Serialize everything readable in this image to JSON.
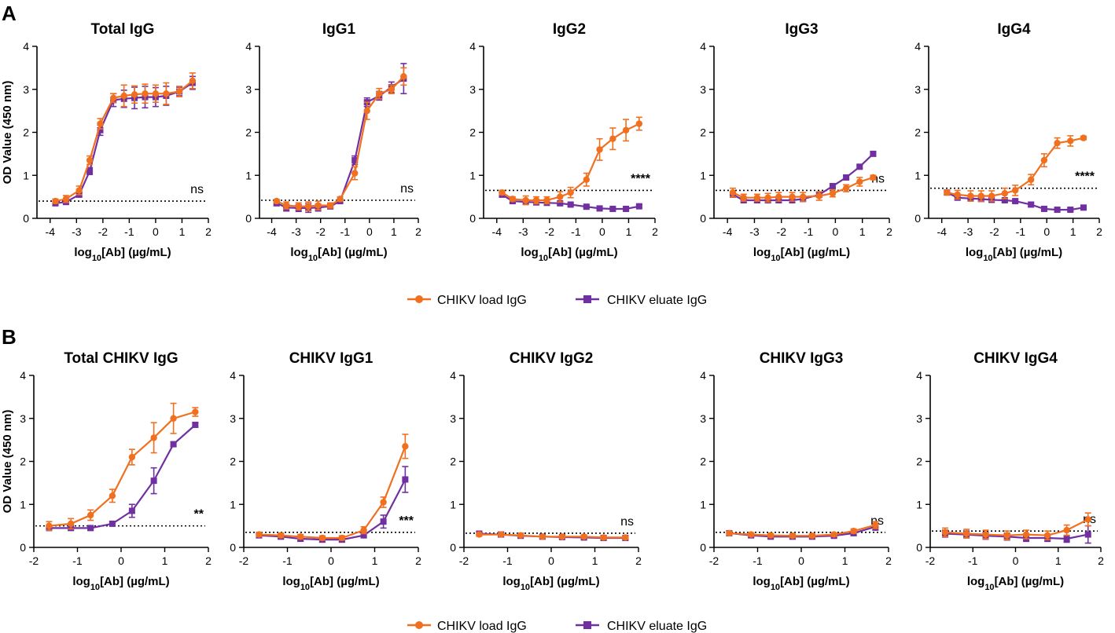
{
  "panels": [
    {
      "letter": "A",
      "legend": [
        "CHIKV load IgG",
        "CHIKV eluate IgG"
      ]
    },
    {
      "letter": "B",
      "legend": [
        "CHIKV load IgG",
        "CHIKV eluate IgG"
      ]
    }
  ],
  "colors": {
    "load": "#f07020",
    "eluate": "#7030a0",
    "axis": "#000000"
  },
  "chart_data": [
    {
      "type": "line",
      "title": "Total IgG",
      "xlabel": "log10[Ab] (µg/mL)",
      "ylabel": "OD Value (450 nm)",
      "xlim": [
        -4.5,
        2
      ],
      "ylim": [
        0,
        4
      ],
      "xticks": [
        "-4",
        "-3",
        "-2",
        "-1",
        "0",
        "1",
        "2"
      ],
      "yticks": [
        "0",
        "1",
        "2",
        "3",
        "4"
      ],
      "threshold": 0.4,
      "significance": "ns",
      "series": [
        {
          "name": "CHIKV load IgG",
          "x": [
            -3.8,
            -3.4,
            -2.9,
            -2.5,
            -2.1,
            -1.6,
            -1.2,
            -0.8,
            -0.4,
            0,
            0.4,
            0.9,
            1.4
          ],
          "y": [
            0.4,
            0.45,
            0.65,
            1.35,
            2.2,
            2.8,
            2.85,
            2.88,
            2.9,
            2.9,
            2.9,
            2.95,
            3.2
          ],
          "err": [
            0.05,
            0.08,
            0.1,
            0.1,
            0.12,
            0.1,
            0.25,
            0.2,
            0.22,
            0.2,
            0.25,
            0.12,
            0.18
          ]
        },
        {
          "name": "CHIKV eluate IgG",
          "x": [
            -3.8,
            -3.4,
            -2.9,
            -2.5,
            -2.1,
            -1.6,
            -1.2,
            -0.8,
            -0.4,
            0,
            0.4,
            0.9,
            1.4
          ],
          "y": [
            0.35,
            0.38,
            0.55,
            1.1,
            2.05,
            2.75,
            2.78,
            2.8,
            2.82,
            2.82,
            2.85,
            2.95,
            3.15
          ],
          "err": [
            0.05,
            0.05,
            0.05,
            0.08,
            0.12,
            0.15,
            0.2,
            0.25,
            0.25,
            0.22,
            0.22,
            0.1,
            0.15
          ]
        }
      ]
    },
    {
      "type": "line",
      "title": "IgG1",
      "xlabel": "log10[Ab] (µg/mL)",
      "ylabel": "OD Value (450 nm)",
      "xlim": [
        -4.5,
        2
      ],
      "ylim": [
        0,
        4
      ],
      "xticks": [
        "-4",
        "-3",
        "-2",
        "-1",
        "0",
        "1",
        "2"
      ],
      "yticks": [
        "0",
        "1",
        "2",
        "3",
        "4"
      ],
      "threshold": 0.42,
      "significance": "ns",
      "series": [
        {
          "name": "CHIKV load IgG",
          "x": [
            -3.8,
            -3.4,
            -2.9,
            -2.5,
            -2.1,
            -1.6,
            -1.2,
            -0.6,
            -0.1,
            0.4,
            0.9,
            1.4
          ],
          "y": [
            0.4,
            0.3,
            0.28,
            0.28,
            0.3,
            0.3,
            0.45,
            1.05,
            2.5,
            2.9,
            3.0,
            3.3
          ],
          "err": [
            0.04,
            0.08,
            0.08,
            0.1,
            0.1,
            0.06,
            0.05,
            0.15,
            0.2,
            0.12,
            0.1,
            0.2
          ]
        },
        {
          "name": "CHIKV eluate IgG",
          "x": [
            -3.8,
            -3.4,
            -2.9,
            -2.5,
            -2.1,
            -1.6,
            -1.2,
            -0.6,
            -0.1,
            0.4,
            0.9,
            1.4
          ],
          "y": [
            0.35,
            0.25,
            0.24,
            0.24,
            0.25,
            0.28,
            0.4,
            1.35,
            2.7,
            2.85,
            3.05,
            3.25
          ],
          "err": [
            0.05,
            0.08,
            0.08,
            0.1,
            0.08,
            0.06,
            0.05,
            0.1,
            0.1,
            0.1,
            0.12,
            0.35
          ]
        }
      ]
    },
    {
      "type": "line",
      "title": "IgG2",
      "xlabel": "log10[Ab] (µg/mL)",
      "ylabel": "OD Value (450 nm)",
      "xlim": [
        -4.5,
        2
      ],
      "ylim": [
        0,
        4
      ],
      "xticks": [
        "-4",
        "-3",
        "-2",
        "-1",
        "0",
        "1",
        "2"
      ],
      "yticks": [
        "0",
        "1",
        "2",
        "3",
        "4"
      ],
      "threshold": 0.65,
      "significance": "****",
      "series": [
        {
          "name": "CHIKV load IgG",
          "x": [
            -3.8,
            -3.4,
            -2.9,
            -2.5,
            -2.1,
            -1.6,
            -1.2,
            -0.6,
            -0.1,
            0.4,
            0.9,
            1.4
          ],
          "y": [
            0.6,
            0.45,
            0.42,
            0.42,
            0.42,
            0.5,
            0.6,
            0.9,
            1.6,
            1.85,
            2.05,
            2.2
          ],
          "err": [
            0.05,
            0.05,
            0.1,
            0.08,
            0.08,
            0.12,
            0.12,
            0.15,
            0.25,
            0.25,
            0.25,
            0.15
          ]
        },
        {
          "name": "CHIKV eluate IgG",
          "x": [
            -3.8,
            -3.4,
            -2.9,
            -2.5,
            -2.1,
            -1.6,
            -1.2,
            -0.6,
            -0.1,
            0.4,
            0.9,
            1.4
          ],
          "y": [
            0.55,
            0.4,
            0.38,
            0.37,
            0.36,
            0.35,
            0.32,
            0.27,
            0.23,
            0.22,
            0.22,
            0.28
          ],
          "err": [
            0.05,
            0.05,
            0.05,
            0.05,
            0.04,
            0.04,
            0.03,
            0.03,
            0.03,
            0.03,
            0.03,
            0.03
          ]
        }
      ]
    },
    {
      "type": "line",
      "title": "IgG3",
      "xlabel": "log10[Ab] (µg/mL)",
      "ylabel": "OD Value (450 nm)",
      "xlim": [
        -4.5,
        2
      ],
      "ylim": [
        0,
        4
      ],
      "xticks": [
        "-4",
        "-3",
        "-2",
        "-1",
        "0",
        "1",
        "2"
      ],
      "yticks": [
        "0",
        "1",
        "2",
        "3",
        "4"
      ],
      "threshold": 0.65,
      "significance": "ns",
      "series": [
        {
          "name": "CHIKV load IgG",
          "x": [
            -3.8,
            -3.4,
            -2.9,
            -2.5,
            -2.1,
            -1.6,
            -1.2,
            -0.6,
            -0.1,
            0.4,
            0.9,
            1.4
          ],
          "y": [
            0.6,
            0.48,
            0.48,
            0.48,
            0.5,
            0.5,
            0.5,
            0.52,
            0.58,
            0.7,
            0.85,
            0.95
          ],
          "err": [
            0.1,
            0.08,
            0.08,
            0.1,
            0.1,
            0.1,
            0.1,
            0.1,
            0.08,
            0.08,
            0.1,
            0.05
          ]
        },
        {
          "name": "CHIKV eluate IgG",
          "x": [
            -3.8,
            -3.4,
            -2.9,
            -2.5,
            -2.1,
            -1.6,
            -1.2,
            -0.6,
            -0.1,
            0.4,
            0.9,
            1.4
          ],
          "y": [
            0.55,
            0.42,
            0.42,
            0.42,
            0.42,
            0.42,
            0.45,
            0.55,
            0.75,
            0.95,
            1.2,
            1.5
          ],
          "err": [
            0.05,
            0.05,
            0.05,
            0.05,
            0.05,
            0.05,
            0.05,
            0.05,
            0.05,
            0.04,
            0.04,
            0.05
          ]
        }
      ]
    },
    {
      "type": "line",
      "title": "IgG4",
      "xlabel": "log10[Ab] (µg/mL)",
      "ylabel": "OD Value (450 nm)",
      "xlim": [
        -4.5,
        2
      ],
      "ylim": [
        0,
        4
      ],
      "xticks": [
        "-4",
        "-3",
        "-2",
        "-1",
        "0",
        "1",
        "2"
      ],
      "yticks": [
        "0",
        "1",
        "2",
        "3",
        "4"
      ],
      "threshold": 0.7,
      "significance": "****",
      "series": [
        {
          "name": "CHIKV load IgG",
          "x": [
            -3.8,
            -3.4,
            -2.9,
            -2.5,
            -2.1,
            -1.6,
            -1.2,
            -0.6,
            -0.1,
            0.4,
            0.9,
            1.4
          ],
          "y": [
            0.6,
            0.55,
            0.52,
            0.52,
            0.52,
            0.58,
            0.65,
            0.9,
            1.35,
            1.75,
            1.8,
            1.87
          ],
          "err": [
            0.05,
            0.1,
            0.12,
            0.12,
            0.12,
            0.12,
            0.12,
            0.12,
            0.15,
            0.12,
            0.12,
            0.04
          ]
        },
        {
          "name": "CHIKV eluate IgG",
          "x": [
            -3.8,
            -3.4,
            -2.9,
            -2.5,
            -2.1,
            -1.6,
            -1.2,
            -0.6,
            -0.1,
            0.4,
            0.9,
            1.4
          ],
          "y": [
            0.6,
            0.48,
            0.46,
            0.45,
            0.43,
            0.42,
            0.4,
            0.32,
            0.22,
            0.2,
            0.2,
            0.25
          ],
          "err": [
            0.05,
            0.05,
            0.05,
            0.05,
            0.05,
            0.04,
            0.04,
            0.04,
            0.03,
            0.03,
            0.03,
            0.03
          ]
        }
      ]
    },
    {
      "type": "line",
      "title": "Total CHIKV IgG",
      "xlabel": "log10[Ab] (µg/mL)",
      "ylabel": "OD Value (450 nm)",
      "xlim": [
        -2,
        2
      ],
      "ylim": [
        0,
        4
      ],
      "xticks": [
        "-2",
        "-1",
        "0",
        "1",
        "2"
      ],
      "yticks": [
        "0",
        "1",
        "2",
        "3",
        "4"
      ],
      "threshold": 0.5,
      "significance": "**",
      "series": [
        {
          "name": "CHIKV load IgG",
          "x": [
            -1.65,
            -1.15,
            -0.7,
            -0.2,
            0.25,
            0.75,
            1.2,
            1.7
          ],
          "y": [
            0.5,
            0.55,
            0.75,
            1.2,
            2.1,
            2.55,
            3.0,
            3.15
          ],
          "err": [
            0.1,
            0.12,
            0.12,
            0.15,
            0.18,
            0.35,
            0.35,
            0.1
          ]
        },
        {
          "name": "CHIKV eluate IgG",
          "x": [
            -1.65,
            -1.15,
            -0.7,
            -0.2,
            0.25,
            0.75,
            1.2,
            1.7
          ],
          "y": [
            0.45,
            0.45,
            0.45,
            0.55,
            0.85,
            1.55,
            2.4,
            2.85
          ],
          "err": [
            0.05,
            0.05,
            0.05,
            0.05,
            0.15,
            0.3,
            0.05,
            0.05
          ]
        }
      ]
    },
    {
      "type": "line",
      "title": "CHIKV IgG1",
      "xlabel": "log10[Ab] (µg/mL)",
      "ylabel": "OD Value (450 nm)",
      "xlim": [
        -2,
        2
      ],
      "ylim": [
        0,
        4
      ],
      "xticks": [
        "-2",
        "-1",
        "0",
        "1",
        "2"
      ],
      "yticks": [
        "0",
        "1",
        "2",
        "3",
        "4"
      ],
      "threshold": 0.35,
      "significance": "***",
      "series": [
        {
          "name": "CHIKV load IgG",
          "x": [
            -1.65,
            -1.15,
            -0.7,
            -0.2,
            0.25,
            0.75,
            1.2,
            1.7
          ],
          "y": [
            0.3,
            0.28,
            0.25,
            0.22,
            0.22,
            0.4,
            1.05,
            2.35
          ],
          "err": [
            0.05,
            0.05,
            0.05,
            0.05,
            0.05,
            0.08,
            0.12,
            0.28
          ]
        },
        {
          "name": "CHIKV eluate IgG",
          "x": [
            -1.65,
            -1.15,
            -0.7,
            -0.2,
            0.25,
            0.75,
            1.2,
            1.7
          ],
          "y": [
            0.28,
            0.25,
            0.2,
            0.18,
            0.18,
            0.28,
            0.6,
            1.58
          ],
          "err": [
            0.05,
            0.05,
            0.05,
            0.05,
            0.05,
            0.05,
            0.15,
            0.3
          ]
        }
      ]
    },
    {
      "type": "line",
      "title": "CHIKV IgG2",
      "xlabel": "log10[Ab] (µg/mL)",
      "ylabel": "OD Value (450 nm)",
      "xlim": [
        -2,
        2
      ],
      "ylim": [
        0,
        4
      ],
      "xticks": [
        "-2",
        "-1",
        "0",
        "1",
        "2"
      ],
      "yticks": [
        "0",
        "1",
        "2",
        "3",
        "4"
      ],
      "threshold": 0.33,
      "significance": "ns",
      "series": [
        {
          "name": "CHIKV load IgG",
          "x": [
            -1.65,
            -1.15,
            -0.7,
            -0.2,
            0.25,
            0.75,
            1.2,
            1.7
          ],
          "y": [
            0.3,
            0.3,
            0.28,
            0.25,
            0.25,
            0.25,
            0.23,
            0.23
          ],
          "err": [
            0.03,
            0.03,
            0.03,
            0.03,
            0.03,
            0.03,
            0.03,
            0.03
          ]
        },
        {
          "name": "CHIKV eluate IgG",
          "x": [
            -1.65,
            -1.15,
            -0.7,
            -0.2,
            0.25,
            0.75,
            1.2,
            1.7
          ],
          "y": [
            0.32,
            0.3,
            0.27,
            0.25,
            0.24,
            0.23,
            0.22,
            0.22
          ],
          "err": [
            0.03,
            0.03,
            0.03,
            0.03,
            0.03,
            0.03,
            0.03,
            0.03
          ]
        }
      ]
    },
    {
      "type": "line",
      "title": "CHIKV IgG3",
      "xlabel": "log10[Ab] (µg/mL)",
      "ylabel": "OD Value (450 nm)",
      "xlim": [
        -2,
        2
      ],
      "ylim": [
        0,
        4
      ],
      "xticks": [
        "-2",
        "-1",
        "0",
        "1",
        "2"
      ],
      "yticks": [
        "0",
        "1",
        "2",
        "3",
        "4"
      ],
      "threshold": 0.35,
      "significance": "ns",
      "series": [
        {
          "name": "CHIKV load IgG",
          "x": [
            -1.65,
            -1.15,
            -0.7,
            -0.2,
            0.25,
            0.75,
            1.2,
            1.7
          ],
          "y": [
            0.33,
            0.3,
            0.28,
            0.27,
            0.27,
            0.3,
            0.38,
            0.52
          ],
          "err": [
            0.04,
            0.04,
            0.04,
            0.04,
            0.04,
            0.04,
            0.05,
            0.08
          ]
        },
        {
          "name": "CHIKV eluate IgG",
          "x": [
            -1.65,
            -1.15,
            -0.7,
            -0.2,
            0.25,
            0.75,
            1.2,
            1.7
          ],
          "y": [
            0.33,
            0.28,
            0.25,
            0.25,
            0.25,
            0.27,
            0.33,
            0.48
          ],
          "err": [
            0.04,
            0.04,
            0.04,
            0.04,
            0.04,
            0.04,
            0.05,
            0.08
          ]
        }
      ]
    },
    {
      "type": "line",
      "title": "CHIKV IgG4",
      "xlabel": "log10[Ab] (µg/mL)",
      "ylabel": "OD Value (450 nm)",
      "xlim": [
        -2,
        2
      ],
      "ylim": [
        0,
        4
      ],
      "xticks": [
        "-2",
        "-1",
        "0",
        "1",
        "2"
      ],
      "yticks": [
        "0",
        "1",
        "2",
        "3",
        "4"
      ],
      "threshold": 0.38,
      "significance": "ns",
      "series": [
        {
          "name": "CHIKV load IgG",
          "x": [
            -1.65,
            -1.15,
            -0.7,
            -0.2,
            0.25,
            0.75,
            1.2,
            1.7
          ],
          "y": [
            0.35,
            0.32,
            0.3,
            0.28,
            0.3,
            0.28,
            0.4,
            0.65
          ],
          "err": [
            0.1,
            0.1,
            0.1,
            0.1,
            0.1,
            0.1,
            0.12,
            0.15
          ]
        },
        {
          "name": "CHIKV eluate IgG",
          "x": [
            -1.65,
            -1.15,
            -0.7,
            -0.2,
            0.25,
            0.75,
            1.2,
            1.7
          ],
          "y": [
            0.32,
            0.3,
            0.27,
            0.25,
            0.22,
            0.22,
            0.2,
            0.3
          ],
          "err": [
            0.08,
            0.08,
            0.08,
            0.08,
            0.08,
            0.08,
            0.08,
            0.2
          ]
        }
      ]
    }
  ]
}
